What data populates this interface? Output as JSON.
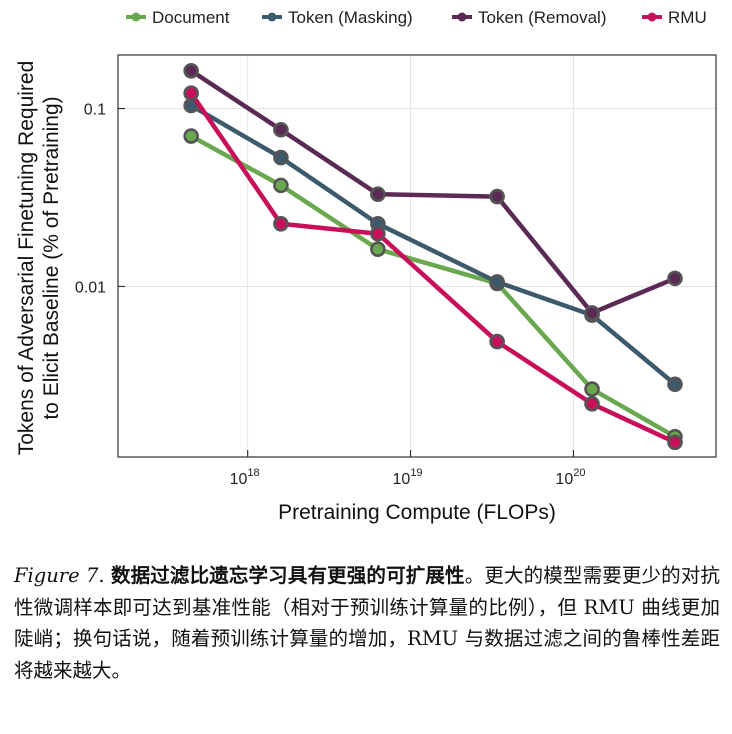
{
  "chart_data": {
    "type": "line",
    "x_scale": "log",
    "y_scale": "log",
    "xlabel": "Pretraining Compute (FLOPs)",
    "ylabel_line1": "Tokens of Adversarial Finetuning Required",
    "ylabel_line2": "to Elicit Baseline (% of Pretraining)",
    "xlim": [
      1.6e+17,
      7.5e+20
    ],
    "ylim": [
      0.0011,
      0.2
    ],
    "x_ticks": [
      {
        "value": 1e+18,
        "base": "10",
        "exp": "18"
      },
      {
        "value": 1e+19,
        "base": "10",
        "exp": "19"
      },
      {
        "value": 1e+20,
        "base": "10",
        "exp": "20"
      }
    ],
    "y_ticks": [
      {
        "value": 0.1,
        "label": "0.1"
      },
      {
        "value": 0.01,
        "label": "0.01"
      }
    ],
    "x": [
      4.5e+17,
      1.6e+18,
      6.3e+18,
      3.4e+19,
      1.3e+20,
      4.2e+20
    ],
    "series": [
      {
        "name": "Document",
        "color": "#6aa84f",
        "values": [
          0.07,
          0.037,
          0.0162,
          0.0104,
          0.00265,
          0.00143
        ]
      },
      {
        "name": "Token (Masking)",
        "color": "#3d5a6c",
        "values": [
          0.104,
          0.053,
          0.0225,
          0.0106,
          0.0069,
          0.00282
        ]
      },
      {
        "name": "Token (Removal)",
        "color": "#5a2a55",
        "values": [
          0.163,
          0.076,
          0.033,
          0.032,
          0.0071,
          0.0111
        ]
      },
      {
        "name": "RMU",
        "color": "#c8105a",
        "values": [
          0.122,
          0.0225,
          0.0198,
          0.0049,
          0.00219,
          0.00133
        ]
      }
    ]
  },
  "caption": {
    "label": "Figure 7.",
    "title": "数据过滤比遗忘学习具有更强的可扩展性",
    "body": "。更大的模型需要更少的对抗性微调样本即可达到基准性能（相对于预训练计算量的比例），但 RMU 曲线更加陡峭；换句话说，随着预训练计算量的增加，RMU 与数据过滤之间的鲁棒性差距将越来越大。"
  }
}
